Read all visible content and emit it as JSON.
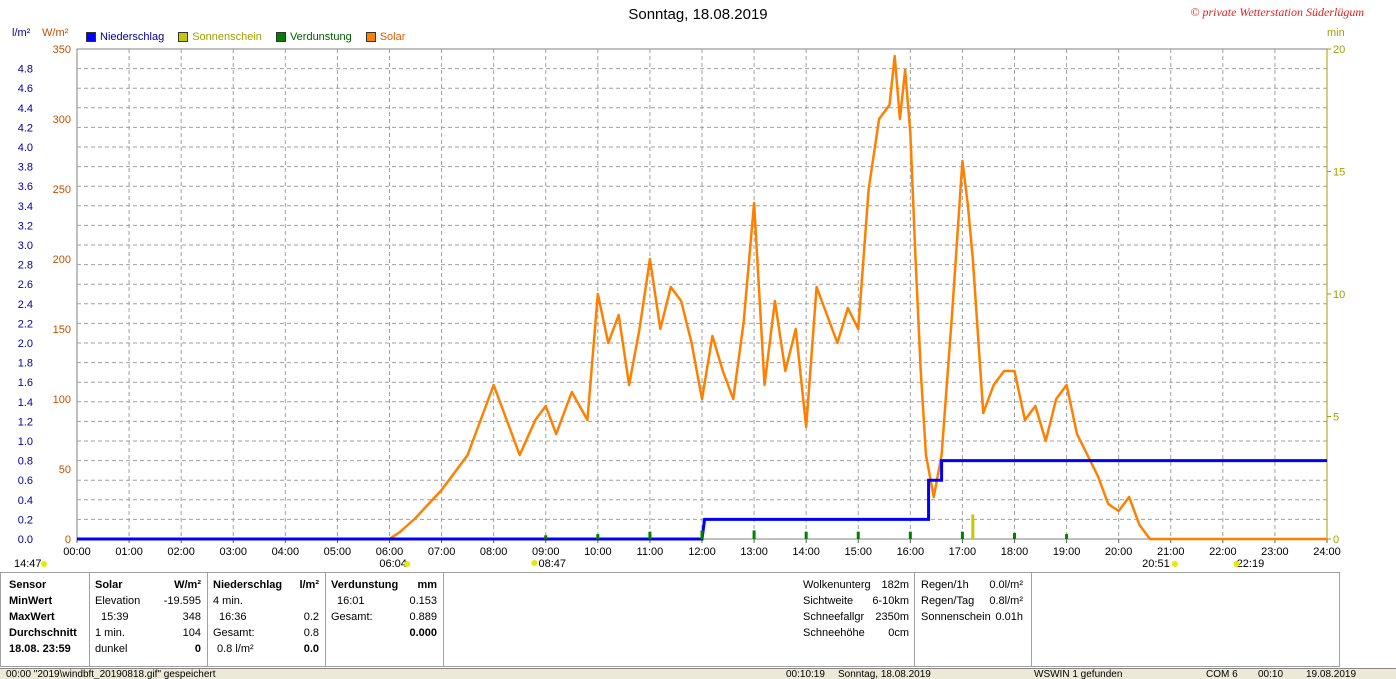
{
  "header": {
    "title": "Sonntag, 18.08.2019",
    "copyright": "© private Wetterstation Süderlügum",
    "left_unit_rain": "l/m²",
    "left_unit_solar": "W/m²",
    "right_unit": "min"
  },
  "legend": [
    {
      "label": "Niederschlag",
      "color": "#0000ff"
    },
    {
      "label": "Sonnenschein",
      "color": "#c8c800"
    },
    {
      "label": "Verdunstung",
      "color": "#008000"
    },
    {
      "label": "Solar",
      "color": "#ff8000"
    }
  ],
  "markers": {
    "left": "14:47",
    "sunrise": "06:04",
    "noon": "08:47",
    "sunset": "20:51",
    "right": "22:19"
  },
  "chart_data": {
    "type": "line",
    "x_ticks": [
      "00:00",
      "01:00",
      "02:00",
      "03:00",
      "04:00",
      "05:00",
      "06:00",
      "07:00",
      "08:00",
      "09:00",
      "10:00",
      "11:00",
      "12:00",
      "13:00",
      "14:00",
      "15:00",
      "16:00",
      "17:00",
      "18:00",
      "19:00",
      "20:00",
      "21:00",
      "22:00",
      "23:00",
      "24:00"
    ],
    "y_solar_ticks": [
      0,
      50,
      100,
      150,
      200,
      250,
      300,
      350
    ],
    "y_rain_ticks": [
      "0.0",
      "0.2",
      "0.4",
      "0.6",
      "0.8",
      "1.0",
      "1.2",
      "1.4",
      "1.6",
      "1.8",
      "2.0",
      "2.2",
      "2.4",
      "2.6",
      "2.8",
      "3.0",
      "3.2",
      "3.4",
      "3.6",
      "3.8",
      "4.0",
      "4.2",
      "4.4",
      "4.6",
      "4.8"
    ],
    "y_min_ticks": [
      0,
      5,
      10,
      15,
      20
    ],
    "ylim_solar": [
      0,
      350
    ],
    "ylim_rain": [
      0,
      5.0
    ],
    "ylim_min": [
      0,
      20
    ],
    "grid": true,
    "series": [
      {
        "name": "Solar",
        "color": "#ff8000",
        "axis": "solar",
        "x": [
          0,
          3.5,
          6.0,
          6.2,
          6.5,
          7.0,
          7.5,
          8.0,
          8.3,
          8.5,
          8.8,
          9.0,
          9.2,
          9.5,
          9.8,
          10.0,
          10.2,
          10.4,
          10.6,
          10.8,
          11.0,
          11.2,
          11.4,
          11.6,
          11.8,
          12.0,
          12.2,
          12.4,
          12.6,
          12.8,
          13.0,
          13.2,
          13.4,
          13.6,
          13.8,
          14.0,
          14.2,
          14.4,
          14.6,
          14.8,
          15.0,
          15.2,
          15.4,
          15.6,
          15.7,
          15.8,
          15.9,
          16.0,
          16.1,
          16.2,
          16.3,
          16.45,
          16.6,
          16.8,
          17.0,
          17.1,
          17.2,
          17.4,
          17.6,
          17.8,
          18.0,
          18.2,
          18.4,
          18.6,
          18.8,
          19.0,
          19.2,
          19.4,
          19.6,
          19.8,
          20.0,
          20.2,
          20.4,
          20.6,
          20.8,
          21.0,
          22.0,
          24.0
        ],
        "y": [
          0,
          0,
          0,
          5,
          15,
          35,
          60,
          110,
          80,
          60,
          85,
          95,
          75,
          105,
          85,
          175,
          140,
          160,
          110,
          150,
          200,
          150,
          180,
          170,
          140,
          100,
          145,
          120,
          100,
          155,
          240,
          110,
          170,
          120,
          150,
          80,
          180,
          160,
          140,
          165,
          150,
          250,
          300,
          310,
          345,
          300,
          335,
          290,
          200,
          120,
          60,
          30,
          60,
          160,
          270,
          240,
          200,
          90,
          110,
          120,
          120,
          85,
          95,
          70,
          100,
          110,
          75,
          60,
          45,
          25,
          20,
          30,
          10,
          0,
          0,
          0,
          0,
          0
        ]
      },
      {
        "name": "Niederschlag",
        "color": "#0000ff",
        "axis": "rain",
        "x": [
          0,
          12.0,
          12.05,
          16.35,
          16.35,
          16.6,
          16.6,
          24
        ],
        "y": [
          0,
          0,
          0.2,
          0.2,
          0.6,
          0.6,
          0.8,
          0.8
        ]
      },
      {
        "name": "Sonnenschein",
        "color": "#c8c800",
        "axis": "min",
        "x": [
          17.2
        ],
        "y": [
          1.0
        ]
      },
      {
        "name": "Verdunstung",
        "color": "#008000",
        "axis": "min",
        "x": [
          9.0,
          10.0,
          11.0,
          12.0,
          13.0,
          14.0,
          15.0,
          16.0,
          17.0,
          18.0,
          19.0
        ],
        "y": [
          0.15,
          0.2,
          0.3,
          0.35,
          0.35,
          0.3,
          0.3,
          0.3,
          0.3,
          0.25,
          0.2
        ]
      }
    ]
  },
  "panel": {
    "col1": [
      "Sensor",
      "MinWert",
      "MaxWert",
      "Durchschnitt",
      "18.08.  23:59"
    ],
    "solar_header": {
      "name": "Solar",
      "unit": "W/m²"
    },
    "solar_rows": [
      [
        "Elevation",
        "-19.595"
      ],
      [
        "15:39",
        "348"
      ],
      [
        "1 min.",
        "104"
      ],
      [
        "dunkel",
        "0"
      ]
    ],
    "rain_header": {
      "name": "Niederschlag",
      "unit": "l/m²"
    },
    "rain_rows": [
      [
        "4 min.",
        ""
      ],
      [
        "16:36",
        "0.2"
      ],
      [
        "Gesamt:",
        "0.8"
      ],
      [
        "0.8 l/m²",
        "0.0"
      ]
    ],
    "evap_header": {
      "name": "Verdunstung",
      "unit": "mm"
    },
    "evap_rows": [
      [
        "",
        ""
      ],
      [
        "16:01",
        "0.153"
      ],
      [
        "Gesamt:",
        "0.889"
      ],
      [
        "",
        "0.000"
      ]
    ],
    "weather_rows": [
      [
        "Wolkenunterg",
        "182m"
      ],
      [
        "Sichtweite",
        "6-10km"
      ],
      [
        "Schneefallgr",
        "2350m"
      ],
      [
        "Schneehöhe",
        "0cm"
      ]
    ],
    "daily_rows": [
      [
        "Regen/1h",
        "0.0l/m²"
      ],
      [
        "Regen/Tag",
        "0.8l/m²"
      ],
      [
        "Sonnenschein",
        "0.01h"
      ]
    ]
  },
  "status": {
    "left": "00:00  \"2019\\windbft_20190818.gif\" gespeichert",
    "time1": "00:10:19",
    "date": "Sonntag, 18.08.2019",
    "wswin": "WSWIN 1 gefunden",
    "com": "COM 6",
    "time2": "00:10",
    "date2": "19.08.2019"
  }
}
